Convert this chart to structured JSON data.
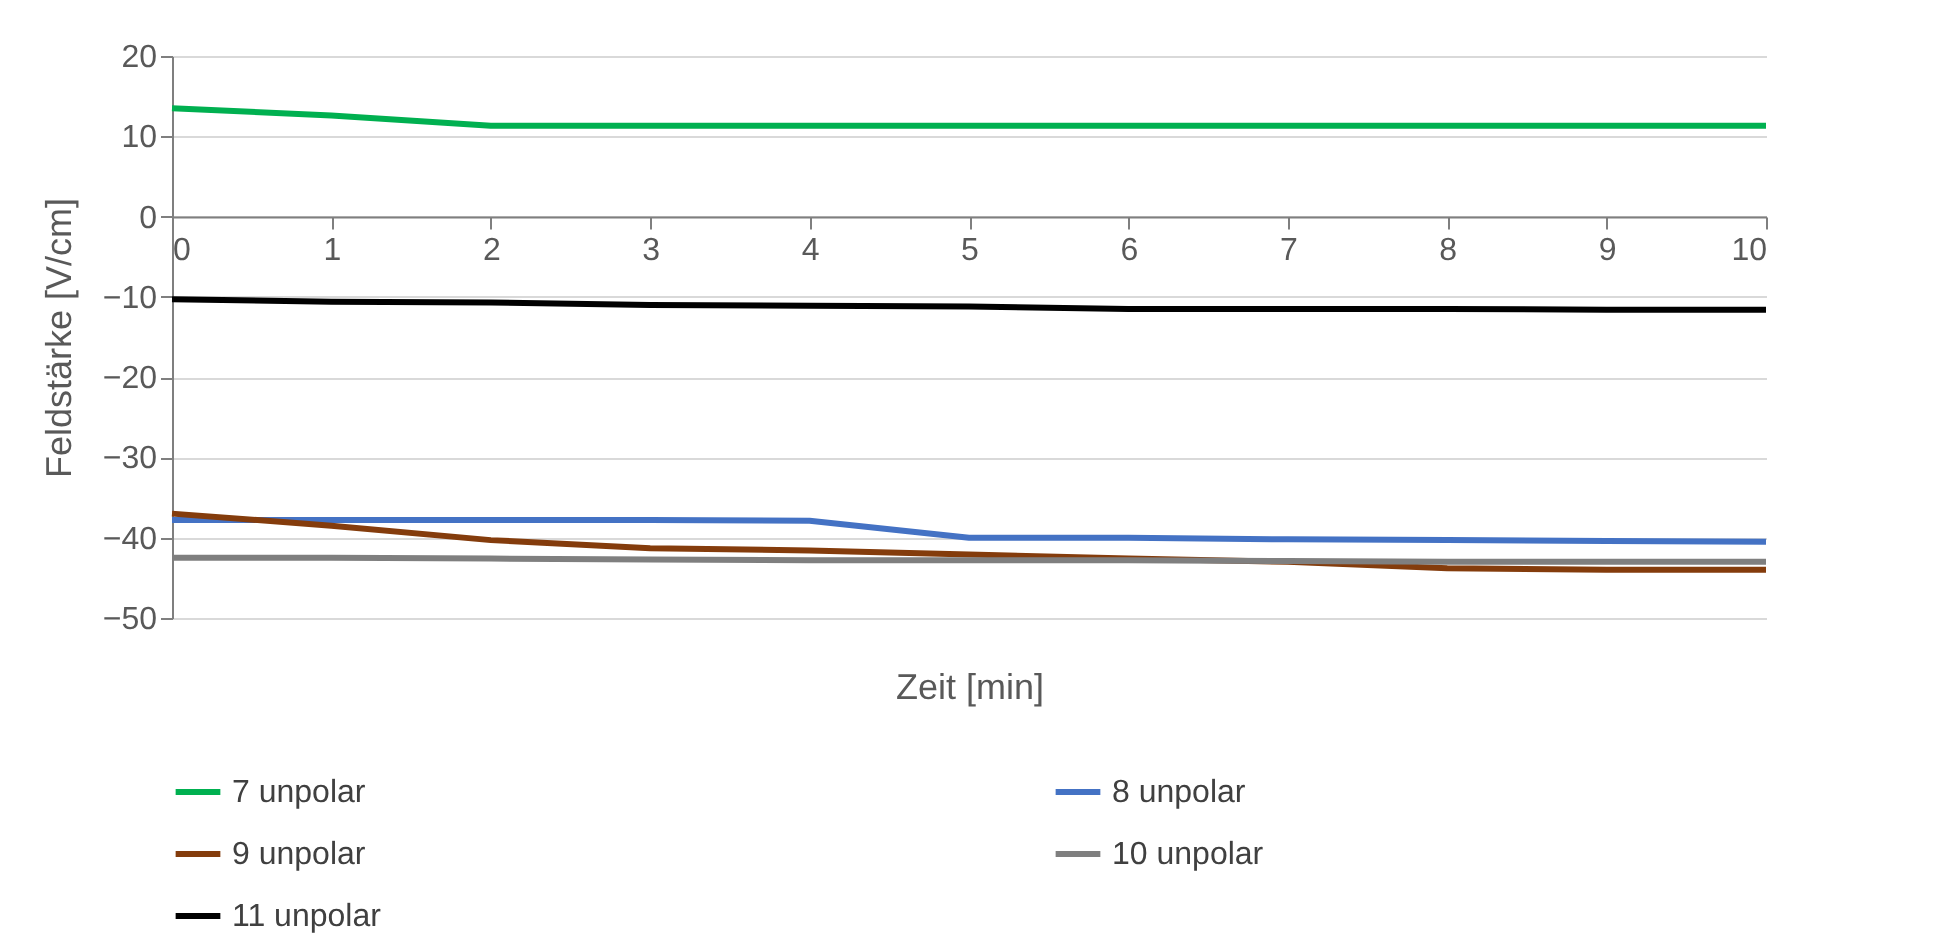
{
  "chart_data": {
    "type": "line",
    "xlabel": "Zeit [min]",
    "ylabel": "Feldstärke [V/cm]",
    "x": [
      0,
      1,
      2,
      3,
      4,
      5,
      6,
      7,
      8,
      9,
      10
    ],
    "xlim": [
      0,
      10
    ],
    "xticks": [
      0,
      1,
      2,
      3,
      4,
      5,
      6,
      7,
      8,
      9,
      10
    ],
    "ylim": [
      -50,
      20
    ],
    "yticks": [
      -50,
      -40,
      -30,
      -20,
      -10,
      0,
      10,
      20
    ],
    "grid": "y",
    "legend": "bottom",
    "marker": "none",
    "line_style": "solid",
    "series": [
      {
        "name": "7 unpolar",
        "color": "#00b050",
        "values": [
          13.5,
          12.6,
          11.3,
          11.3,
          11.3,
          11.3,
          11.3,
          11.3,
          11.3,
          11.3,
          11.3
        ]
      },
      {
        "name": "8 unpolar",
        "color": "#4472c4",
        "values": [
          -37.8,
          -37.8,
          -37.8,
          -37.8,
          -37.9,
          -40,
          -40,
          -40.2,
          -40.3,
          -40.4,
          -40.5
        ]
      },
      {
        "name": "9 unpolar",
        "color": "#843c0c",
        "values": [
          -37,
          -38.5,
          -40.3,
          -41.3,
          -41.6,
          -42.1,
          -42.6,
          -43,
          -43.8,
          -44,
          -44
        ]
      },
      {
        "name": "10 unpolar",
        "color": "#7f7f7f",
        "values": [
          -42.5,
          -42.5,
          -42.6,
          -42.7,
          -42.8,
          -42.8,
          -42.8,
          -42.9,
          -43,
          -43,
          -43
        ]
      },
      {
        "name": "11 unpolar",
        "color": "#000000",
        "values": [
          -10.3,
          -10.6,
          -10.7,
          -11,
          -11.1,
          -11.2,
          -11.5,
          -11.5,
          -11.5,
          -11.6,
          -11.6
        ]
      }
    ]
  }
}
